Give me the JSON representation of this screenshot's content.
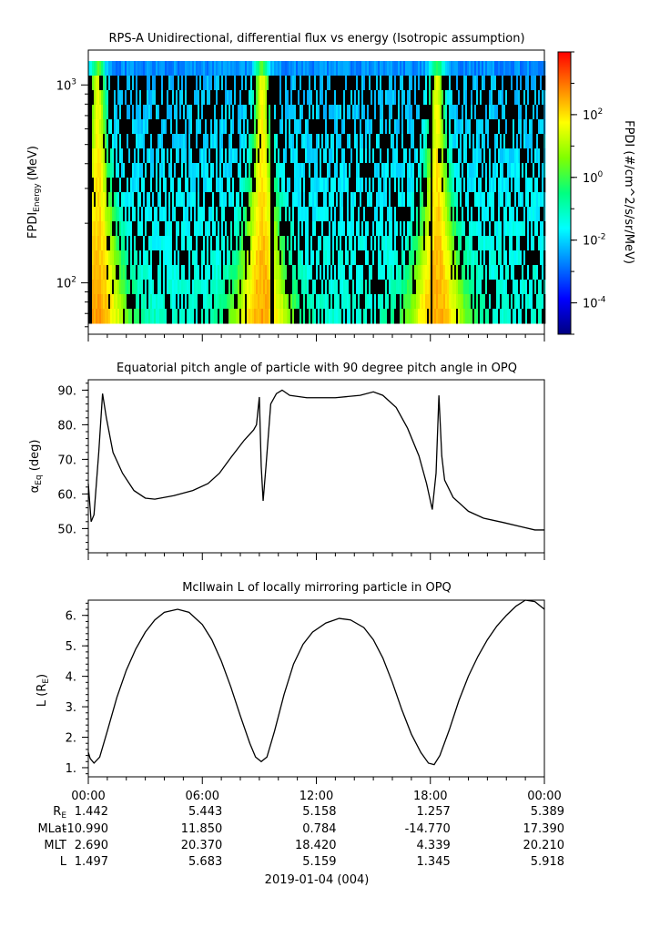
{
  "chart_data": [
    {
      "type": "heatmap",
      "title": "RPS-A Unidirectional, differential flux vs energy (Isotropic assumption)",
      "ylabel_main": "FPDI",
      "ylabel_sub": "Energy",
      "ylabel_unit": "(MeV)",
      "yscale": "log",
      "ylim": [
        55,
        1500
      ],
      "yticks": [
        {
          "value": 100,
          "base": "10",
          "exp": "2"
        },
        {
          "value": 1000,
          "base": "10",
          "exp": "3"
        }
      ],
      "xlim": [
        0,
        24
      ],
      "bright_bands_hours": [
        0.45,
        9.1,
        18.3
      ],
      "dark_column_hours": [
        0.05,
        9.6,
        18.0
      ],
      "colorbar": {
        "label": "FPDI (#/cm^2/s/sr/MeV)",
        "scale": "log",
        "range": [
          1e-05,
          10000
        ],
        "ticks": [
          {
            "value": 100,
            "base": "10",
            "exp": "2"
          },
          {
            "value": 1,
            "base": "10",
            "exp": "0"
          },
          {
            "value": 0.01,
            "base": "10",
            "exp": "-2"
          },
          {
            "value": 0.0001,
            "base": "10",
            "exp": "-4"
          }
        ],
        "colormap": [
          "#000080",
          "#0000ff",
          "#0080ff",
          "#00ffff",
          "#00ff80",
          "#80ff00",
          "#ffff00",
          "#ff8000",
          "#ff0000"
        ]
      }
    },
    {
      "type": "line",
      "title": "Equatorial pitch angle of particle with 90 degree pitch angle in OPQ",
      "ylabel_main": "α",
      "ylabel_sub": "Eq",
      "ylabel_unit": " (deg)",
      "ylim": [
        43,
        93
      ],
      "yticks": [
        "50.",
        "60.",
        "70.",
        "80.",
        "90."
      ],
      "xlim": [
        0,
        24
      ],
      "points": [
        [
          0,
          63
        ],
        [
          0.15,
          52
        ],
        [
          0.3,
          54
        ],
        [
          0.55,
          72
        ],
        [
          0.75,
          89
        ],
        [
          0.95,
          82
        ],
        [
          1.3,
          72
        ],
        [
          1.8,
          66
        ],
        [
          2.4,
          61
        ],
        [
          3.0,
          58.8
        ],
        [
          3.5,
          58.5
        ],
        [
          4.5,
          59.5
        ],
        [
          5.5,
          61
        ],
        [
          6.3,
          63
        ],
        [
          6.9,
          66
        ],
        [
          7.5,
          70.5
        ],
        [
          8.2,
          75.5
        ],
        [
          8.7,
          78.5
        ],
        [
          8.85,
          80
        ],
        [
          9.0,
          88
        ],
        [
          9.1,
          68
        ],
        [
          9.2,
          58
        ],
        [
          9.35,
          68
        ],
        [
          9.6,
          86
        ],
        [
          9.9,
          89
        ],
        [
          10.2,
          90
        ],
        [
          10.6,
          88.5
        ],
        [
          11.5,
          87.8
        ],
        [
          13.0,
          87.8
        ],
        [
          14.3,
          88.5
        ],
        [
          15.0,
          89.5
        ],
        [
          15.5,
          88.5
        ],
        [
          16.2,
          85
        ],
        [
          16.8,
          79
        ],
        [
          17.4,
          71
        ],
        [
          17.8,
          63
        ],
        [
          18.1,
          55.5
        ],
        [
          18.3,
          66
        ],
        [
          18.45,
          88.5
        ],
        [
          18.6,
          71
        ],
        [
          18.75,
          64
        ],
        [
          19.2,
          59
        ],
        [
          20.0,
          55
        ],
        [
          20.8,
          53
        ],
        [
          21.8,
          51.8
        ],
        [
          22.8,
          50.5
        ],
        [
          23.5,
          49.6
        ],
        [
          24,
          49.6
        ]
      ]
    },
    {
      "type": "line",
      "title": "McIlwain L of locally mirroring particle in OPQ",
      "ylabel_main": "L (R",
      "ylabel_sub": "E",
      "ylabel_unit": ")",
      "ylim": [
        0.7,
        6.5
      ],
      "yticks": [
        "1.",
        "2.",
        "3.",
        "4.",
        "5.",
        "6."
      ],
      "xlim": [
        0,
        24
      ],
      "points": [
        [
          0,
          1.5
        ],
        [
          0.1,
          1.3
        ],
        [
          0.3,
          1.15
        ],
        [
          0.6,
          1.35
        ],
        [
          1.0,
          2.2
        ],
        [
          1.5,
          3.3
        ],
        [
          2.0,
          4.2
        ],
        [
          2.5,
          4.9
        ],
        [
          3.0,
          5.45
        ],
        [
          3.5,
          5.85
        ],
        [
          4.0,
          6.1
        ],
        [
          4.7,
          6.2
        ],
        [
          5.3,
          6.1
        ],
        [
          6.0,
          5.7
        ],
        [
          6.5,
          5.2
        ],
        [
          7.0,
          4.5
        ],
        [
          7.5,
          3.65
        ],
        [
          8.0,
          2.7
        ],
        [
          8.5,
          1.8
        ],
        [
          8.8,
          1.35
        ],
        [
          9.1,
          1.2
        ],
        [
          9.4,
          1.35
        ],
        [
          9.8,
          2.2
        ],
        [
          10.3,
          3.4
        ],
        [
          10.8,
          4.4
        ],
        [
          11.3,
          5.05
        ],
        [
          11.8,
          5.45
        ],
        [
          12.5,
          5.75
        ],
        [
          13.2,
          5.9
        ],
        [
          13.8,
          5.85
        ],
        [
          14.5,
          5.6
        ],
        [
          15.0,
          5.2
        ],
        [
          15.5,
          4.6
        ],
        [
          16.0,
          3.8
        ],
        [
          16.5,
          2.9
        ],
        [
          17.0,
          2.1
        ],
        [
          17.5,
          1.5
        ],
        [
          17.9,
          1.15
        ],
        [
          18.2,
          1.1
        ],
        [
          18.5,
          1.4
        ],
        [
          19.0,
          2.25
        ],
        [
          19.5,
          3.2
        ],
        [
          20.0,
          4.0
        ],
        [
          20.5,
          4.65
        ],
        [
          21.0,
          5.2
        ],
        [
          21.5,
          5.65
        ],
        [
          22.0,
          6.0
        ],
        [
          22.5,
          6.3
        ],
        [
          23.0,
          6.5
        ],
        [
          23.5,
          6.45
        ],
        [
          24,
          6.2
        ]
      ]
    }
  ],
  "xaxis": {
    "ticks": [
      "00:00",
      "06:00",
      "12:00",
      "18:00",
      "00:00"
    ],
    "title": "2019-01-04 (004)"
  },
  "ephemeris": {
    "labels": [
      {
        "main": "R",
        "sub": "E"
      },
      {
        "main": "MLat",
        "sub": ""
      },
      {
        "main": "MLT",
        "sub": ""
      },
      {
        "main": "L",
        "sub": ""
      }
    ],
    "rows": [
      [
        "1.442",
        "5.443",
        "5.158",
        "1.257",
        "5.389"
      ],
      [
        "-10.990",
        "11.850",
        "0.784",
        "-14.770",
        "17.390"
      ],
      [
        "2.690",
        "20.370",
        "18.420",
        "4.339",
        "20.210"
      ],
      [
        "1.497",
        "5.683",
        "5.159",
        "1.345",
        "5.918"
      ]
    ]
  }
}
